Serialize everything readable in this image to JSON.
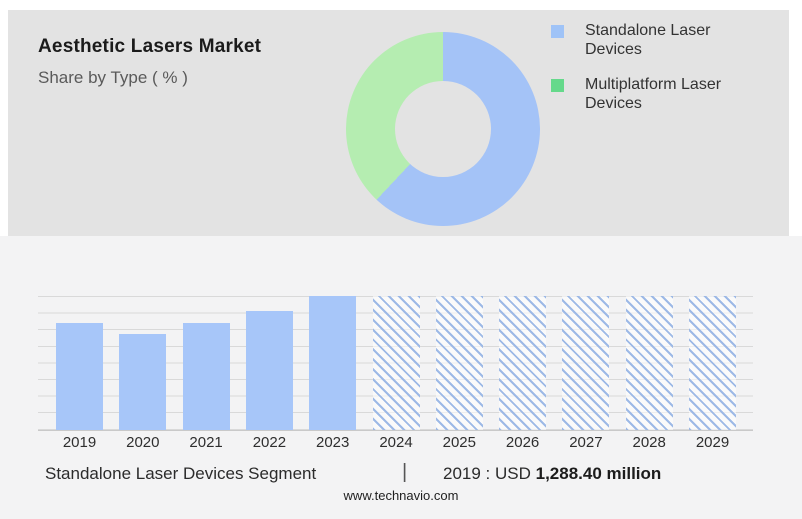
{
  "header": {
    "title": "Aesthetic Lasers Market",
    "subtitle": "Share by Type ( % )"
  },
  "donut": {
    "legend": [
      {
        "label": "Standalone Laser Devices",
        "swatch_color": "#9fc3f7"
      },
      {
        "label": "Multiplatform Laser Devices",
        "swatch_color": "#65d98b"
      }
    ]
  },
  "footer": {
    "segment_label": "Standalone Laser Devices Segment",
    "separator": "|",
    "value_prefix": "2019 : USD ",
    "value_bold": "1,288.40 million",
    "website": "www.technavio.com"
  },
  "chart_data": [
    {
      "type": "pie",
      "subtype": "donut",
      "title": "Aesthetic Lasers Market — Share by Type ( % )",
      "labels": [
        "Standalone Laser Devices",
        "Multiplatform Laser Devices"
      ],
      "values": [
        62,
        38
      ],
      "value_units": "percent, estimated from arc angles (no printed data labels)",
      "colors": [
        "#a4c3f7",
        "#b5edb1"
      ],
      "legend_position": "right",
      "start_angle_deg": 0,
      "direction": "clockwise"
    },
    {
      "type": "bar",
      "categories": [
        "2019",
        "2020",
        "2021",
        "2022",
        "2023",
        "2024",
        "2025",
        "2026",
        "2027",
        "2028",
        "2029"
      ],
      "values": [
        80,
        72,
        80,
        89,
        100,
        100,
        100,
        100,
        100,
        100,
        100
      ],
      "value_units": "relative bar height, % of tallest (2023) bar; no y-axis labels printed",
      "forecast": [
        false,
        false,
        false,
        false,
        false,
        true,
        true,
        true,
        true,
        true,
        true
      ],
      "bar_color": "#a7c6f9",
      "hatch_color": "#9db9e6",
      "hatch_style": "diagonal-backslash",
      "gridline_color": "#d9d9d9",
      "grid": true,
      "xlabel": "",
      "ylabel": "",
      "annotation": "2019 : USD 1,288.40 million"
    }
  ]
}
